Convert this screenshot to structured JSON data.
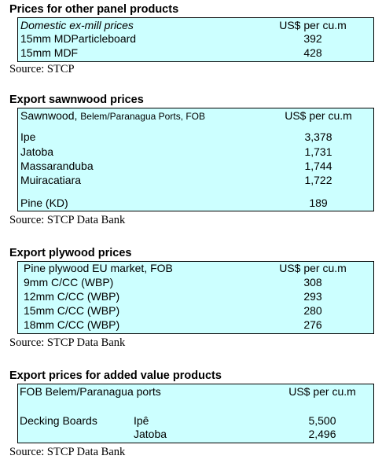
{
  "sections": [
    {
      "title": "Prices for other panel products",
      "header": {
        "label": "Domestic ex-mill prices",
        "unit": "US$ per cu.m"
      },
      "rows": [
        [
          "15mm MDParticleboard",
          "392"
        ],
        [
          "15mm MDF",
          "428"
        ]
      ],
      "source": "Source: STCP"
    },
    {
      "title": "Export sawnwood prices",
      "header": {
        "label": "Sawnwood,",
        "label_detail": "Belem/Paranagua Ports, FOB",
        "unit": "US$ per cu.m"
      },
      "rows": [
        [
          "Ipe",
          "3,378"
        ],
        [
          "Jatoba",
          "1,731"
        ],
        [
          "Massaranduba",
          "1,744"
        ],
        [
          "Muiracatiara",
          "1,722"
        ],
        [
          "Pine (KD)",
          "189"
        ]
      ],
      "source": "Source: STCP Data Bank"
    },
    {
      "title": "Export plywood prices",
      "header": {
        "label": "Pine plywood EU market, FOB",
        "unit": "US$ per cu.m"
      },
      "rows": [
        [
          "9mm C/CC (WBP)",
          "308"
        ],
        [
          "12mm C/CC (WBP)",
          "293"
        ],
        [
          "15mm C/CC (WBP)",
          "280"
        ],
        [
          "18mm C/CC (WBP)",
          "276"
        ]
      ],
      "source": "Source: STCP Data Bank"
    },
    {
      "title": "Export prices for added value products",
      "header": {
        "label": "FOB Belem/Paranagua ports",
        "unit": "US$ per cu.m"
      },
      "product": "Decking Boards",
      "rows": [
        [
          "Ipê",
          "5,500"
        ],
        [
          "Jatoba",
          "2,496"
        ]
      ],
      "source": "Source: STCP Data Bank"
    }
  ]
}
